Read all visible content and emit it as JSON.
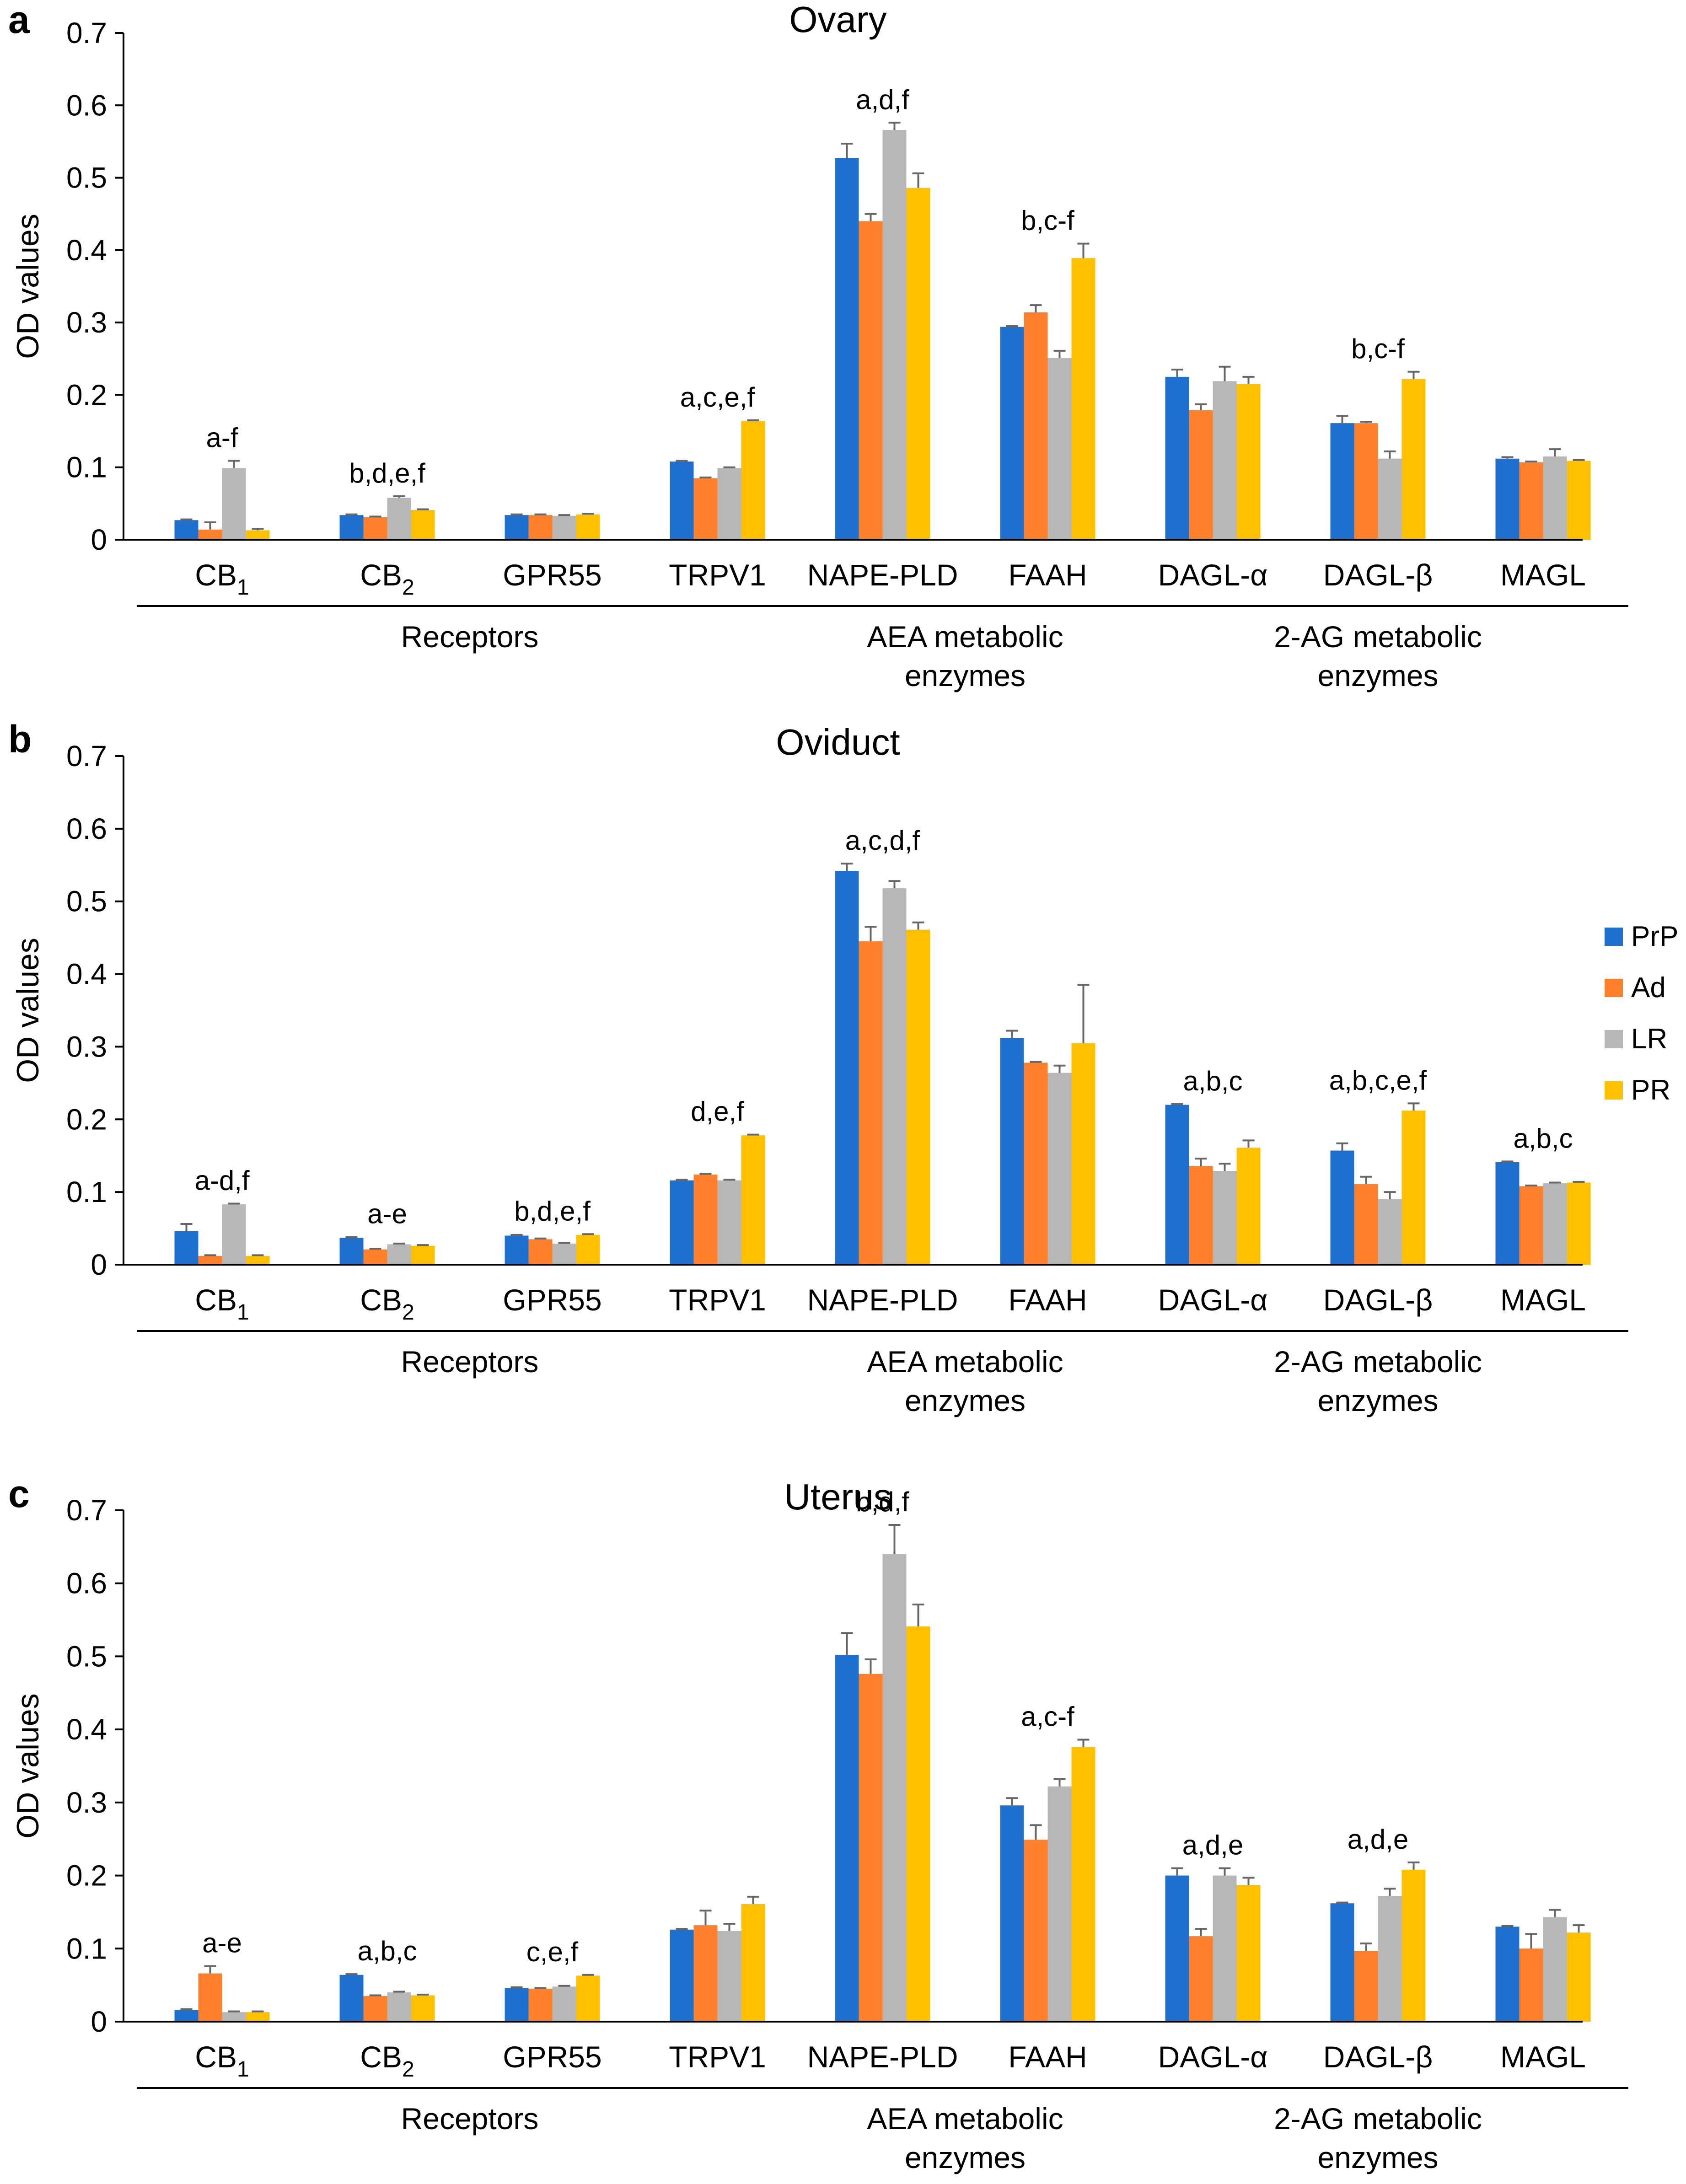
{
  "colors": {
    "PrP": "#1f6fcf",
    "Ad": "#ff7f2a",
    "LR": "#b7b7b7",
    "PR": "#ffc000",
    "error_bar": "#666666",
    "axis": "#000000"
  },
  "legend": {
    "entries": [
      "PrP",
      "Ad",
      "LR",
      "PR"
    ]
  },
  "chart_data": [
    {
      "type": "bar",
      "panel_label": "a",
      "title": "Ovary",
      "ylabel": "OD values",
      "ylim": [
        0,
        0.7
      ],
      "yticks": [
        "0",
        "0.1",
        "0.2",
        "0.3",
        "0.4",
        "0.5",
        "0.6",
        "0.7"
      ],
      "categories": [
        {
          "main": "CB",
          "sub": "1"
        },
        {
          "main": "CB",
          "sub": "2"
        },
        {
          "main": "GPR55",
          "sub": ""
        },
        {
          "main": "TRPV1",
          "sub": ""
        },
        {
          "main": "NAPE-PLD",
          "sub": ""
        },
        {
          "main": "FAAH",
          "sub": ""
        },
        {
          "main": "DAGL-α",
          "sub": ""
        },
        {
          "main": "DAGL-β",
          "sub": ""
        },
        {
          "main": "MAGL",
          "sub": ""
        }
      ],
      "groups": [
        {
          "lines": [
            "Receptors"
          ],
          "from": 0,
          "to": 3
        },
        {
          "lines": [
            "AEA metabolic",
            "enzymes"
          ],
          "from": 4,
          "to": 5
        },
        {
          "lines": [
            "2-AG metabolic",
            "enzymes"
          ],
          "from": 6,
          "to": 8
        }
      ],
      "series": [
        {
          "name": "PrP",
          "values": [
            0.027,
            0.034,
            0.034,
            0.108,
            0.527,
            0.294,
            0.225,
            0.161,
            0.112
          ],
          "errors": [
            0.001,
            0.001,
            0.001,
            0.001,
            0.02,
            0.001,
            0.01,
            0.01,
            0.002
          ]
        },
        {
          "name": "Ad",
          "values": [
            0.014,
            0.031,
            0.034,
            0.085,
            0.44,
            0.314,
            0.179,
            0.161,
            0.107
          ],
          "errors": [
            0.01,
            0.001,
            0.001,
            0.001,
            0.01,
            0.01,
            0.008,
            0.002,
            0.001
          ]
        },
        {
          "name": "LR",
          "values": [
            0.099,
            0.058,
            0.033,
            0.099,
            0.566,
            0.251,
            0.219,
            0.112,
            0.115
          ],
          "errors": [
            0.01,
            0.002,
            0.001,
            0.001,
            0.01,
            0.01,
            0.02,
            0.01,
            0.01
          ]
        },
        {
          "name": "PR",
          "values": [
            0.013,
            0.041,
            0.035,
            0.164,
            0.486,
            0.389,
            0.215,
            0.222,
            0.109
          ],
          "errors": [
            0.002,
            0.001,
            0.001,
            0.001,
            0.02,
            0.02,
            0.01,
            0.01,
            0.001
          ]
        }
      ],
      "annotations": [
        "a-f",
        "b,d,e,f",
        "",
        "a,c,e,f",
        "a,d,f",
        "b,c-f",
        "",
        "b,c-f",
        ""
      ]
    },
    {
      "type": "bar",
      "panel_label": "b",
      "title": "Oviduct",
      "ylabel": "OD values",
      "ylim": [
        0,
        0.7
      ],
      "yticks": [
        "0",
        "0.1",
        "0.2",
        "0.3",
        "0.4",
        "0.5",
        "0.6",
        "0.7"
      ],
      "categories": [
        {
          "main": "CB",
          "sub": "1"
        },
        {
          "main": "CB",
          "sub": "2"
        },
        {
          "main": "GPR55",
          "sub": ""
        },
        {
          "main": "TRPV1",
          "sub": ""
        },
        {
          "main": "NAPE-PLD",
          "sub": ""
        },
        {
          "main": "FAAH",
          "sub": ""
        },
        {
          "main": "DAGL-α",
          "sub": ""
        },
        {
          "main": "DAGL-β",
          "sub": ""
        },
        {
          "main": "MAGL",
          "sub": ""
        }
      ],
      "groups": [
        {
          "lines": [
            "Receptors"
          ],
          "from": 0,
          "to": 3
        },
        {
          "lines": [
            "AEA metabolic",
            "enzymes"
          ],
          "from": 4,
          "to": 5
        },
        {
          "lines": [
            "2-AG metabolic",
            "enzymes"
          ],
          "from": 6,
          "to": 8
        }
      ],
      "series": [
        {
          "name": "PrP",
          "values": [
            0.046,
            0.037,
            0.04,
            0.116,
            0.542,
            0.312,
            0.22,
            0.157,
            0.141
          ],
          "errors": [
            0.01,
            0.001,
            0.001,
            0.001,
            0.01,
            0.01,
            0.001,
            0.01,
            0.001
          ]
        },
        {
          "name": "Ad",
          "values": [
            0.012,
            0.021,
            0.035,
            0.124,
            0.445,
            0.278,
            0.136,
            0.111,
            0.108
          ],
          "errors": [
            0.001,
            0.001,
            0.001,
            0.001,
            0.02,
            0.001,
            0.01,
            0.01,
            0.001
          ]
        },
        {
          "name": "LR",
          "values": [
            0.083,
            0.028,
            0.029,
            0.116,
            0.518,
            0.264,
            0.129,
            0.09,
            0.112
          ],
          "errors": [
            0.001,
            0.001,
            0.001,
            0.001,
            0.01,
            0.01,
            0.01,
            0.01,
            0.001
          ]
        },
        {
          "name": "PR",
          "values": [
            0.012,
            0.026,
            0.041,
            0.178,
            0.461,
            0.305,
            0.161,
            0.212,
            0.113
          ],
          "errors": [
            0.001,
            0.001,
            0.001,
            0.001,
            0.01,
            0.08,
            0.01,
            0.01,
            0.001
          ]
        }
      ],
      "annotations": [
        "a-d,f",
        "a-e",
        "b,d,e,f",
        "d,e,f",
        "a,c,d,f",
        "",
        "a,b,c",
        "a,b,c,e,f",
        "a,b,c"
      ]
    },
    {
      "type": "bar",
      "panel_label": "c",
      "title": "Uterus",
      "ylabel": "OD values",
      "ylim": [
        0,
        0.7
      ],
      "yticks": [
        "0",
        "0.1",
        "0.2",
        "0.3",
        "0.4",
        "0.5",
        "0.6",
        "0.7"
      ],
      "categories": [
        {
          "main": "CB",
          "sub": "1"
        },
        {
          "main": "CB",
          "sub": "2"
        },
        {
          "main": "GPR55",
          "sub": ""
        },
        {
          "main": "TRPV1",
          "sub": ""
        },
        {
          "main": "NAPE-PLD",
          "sub": ""
        },
        {
          "main": "FAAH",
          "sub": ""
        },
        {
          "main": "DAGL-α",
          "sub": ""
        },
        {
          "main": "DAGL-β",
          "sub": ""
        },
        {
          "main": "MAGL",
          "sub": ""
        }
      ],
      "groups": [
        {
          "lines": [
            "Receptors"
          ],
          "from": 0,
          "to": 3
        },
        {
          "lines": [
            "AEA metabolic",
            "enzymes"
          ],
          "from": 4,
          "to": 5
        },
        {
          "lines": [
            "2-AG metabolic",
            "enzymes"
          ],
          "from": 6,
          "to": 8
        }
      ],
      "series": [
        {
          "name": "PrP",
          "values": [
            0.016,
            0.064,
            0.046,
            0.126,
            0.502,
            0.296,
            0.2,
            0.162,
            0.13
          ],
          "errors": [
            0.001,
            0.001,
            0.001,
            0.001,
            0.03,
            0.01,
            0.01,
            0.001,
            0.001
          ]
        },
        {
          "name": "Ad",
          "values": [
            0.066,
            0.035,
            0.045,
            0.132,
            0.476,
            0.249,
            0.117,
            0.097,
            0.1
          ],
          "errors": [
            0.01,
            0.001,
            0.001,
            0.02,
            0.02,
            0.02,
            0.01,
            0.01,
            0.02
          ]
        },
        {
          "name": "LR",
          "values": [
            0.013,
            0.04,
            0.048,
            0.124,
            0.64,
            0.322,
            0.2,
            0.172,
            0.143
          ],
          "errors": [
            0.001,
            0.001,
            0.001,
            0.01,
            0.04,
            0.01,
            0.01,
            0.01,
            0.01
          ]
        },
        {
          "name": "PR",
          "values": [
            0.013,
            0.036,
            0.063,
            0.161,
            0.541,
            0.376,
            0.187,
            0.208,
            0.122
          ],
          "errors": [
            0.001,
            0.001,
            0.001,
            0.01,
            0.03,
            0.01,
            0.01,
            0.01,
            0.01
          ]
        }
      ],
      "annotations": [
        "a-e",
        "a,b,c",
        "c,e,f",
        "",
        "b,d,f",
        "a,c-f",
        "a,d,e",
        "a,d,e",
        ""
      ]
    }
  ]
}
